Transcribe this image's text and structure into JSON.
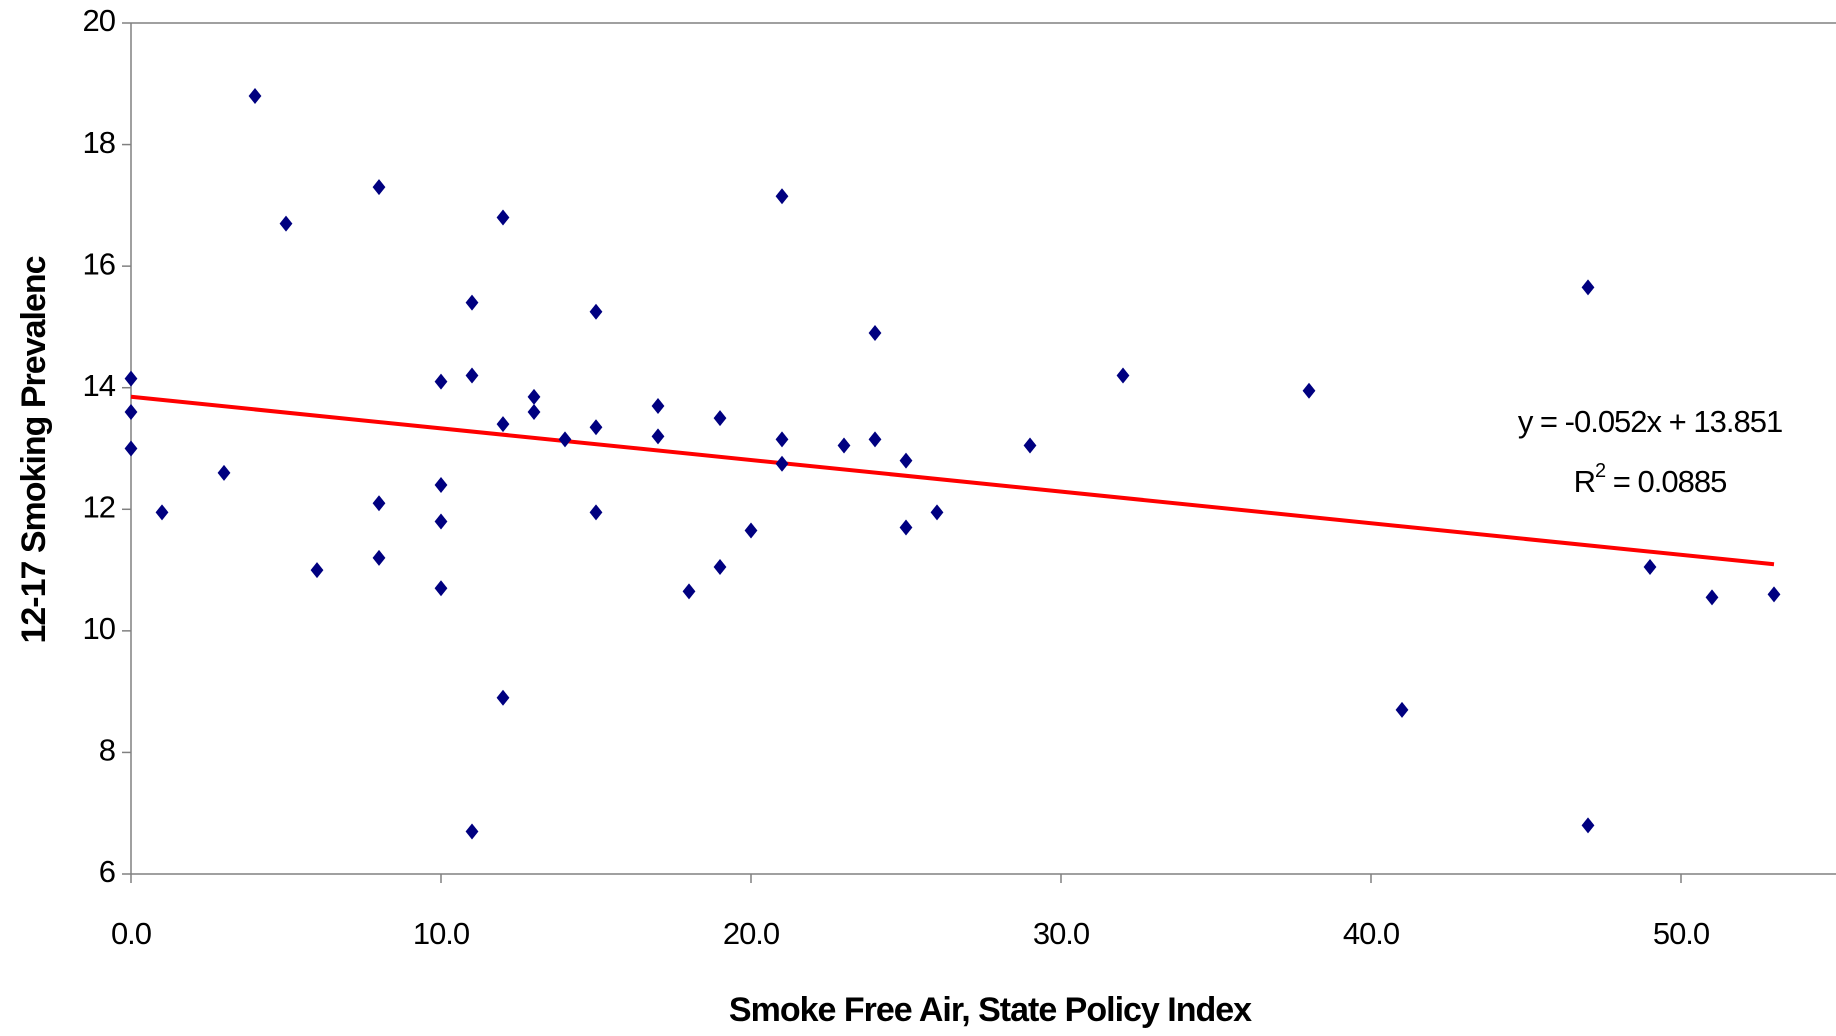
{
  "chart_data": {
    "type": "scatter",
    "x_label": "Smoke Free Air, State Policy Index",
    "y_label": "12-17 Smoking Prevalenc",
    "xlim": [
      0,
      55
    ],
    "ylim": [
      6,
      20
    ],
    "xticks": [
      {
        "value": 0,
        "label": "0.0"
      },
      {
        "value": 10,
        "label": "10.0"
      },
      {
        "value": 20,
        "label": "20.0"
      },
      {
        "value": 30,
        "label": "30.0"
      },
      {
        "value": 40,
        "label": "40.0"
      },
      {
        "value": 50,
        "label": "50.0"
      }
    ],
    "yticks": [
      6,
      8,
      10,
      12,
      14,
      16,
      18,
      20
    ],
    "color": "#000080",
    "x": [
      0,
      0,
      0,
      1,
      3,
      4,
      5,
      6,
      8,
      8,
      8,
      10,
      10,
      10,
      10,
      11,
      11,
      11,
      12,
      12,
      12,
      13,
      13,
      14,
      15,
      15,
      15,
      17,
      17,
      18,
      19,
      19,
      20,
      21,
      21,
      21,
      23,
      24,
      24,
      25,
      25,
      26,
      29,
      32,
      38,
      41,
      47,
      47,
      49,
      51,
      53
    ],
    "values": [
      14.15,
      13.6,
      13.0,
      11.95,
      12.6,
      18.8,
      16.7,
      11.0,
      17.3,
      12.1,
      11.2,
      14.1,
      12.4,
      11.8,
      10.7,
      15.4,
      14.2,
      6.7,
      16.8,
      13.4,
      8.9,
      13.85,
      13.6,
      13.15,
      15.25,
      13.35,
      11.95,
      13.7,
      13.2,
      10.65,
      13.5,
      11.05,
      11.65,
      17.15,
      13.15,
      12.75,
      13.05,
      14.9,
      13.15,
      12.8,
      11.7,
      11.95,
      13.05,
      14.2,
      13.95,
      8.7,
      15.65,
      6.8,
      11.05,
      10.55,
      10.6
    ],
    "trendline": {
      "slope": -0.052,
      "intercept": 13.851,
      "color": "#ff0000"
    },
    "equation": "y = -0.052x + 13.851",
    "r_squared": {
      "base": "R",
      "sup": "2",
      "rest": " = 0.0885"
    }
  }
}
